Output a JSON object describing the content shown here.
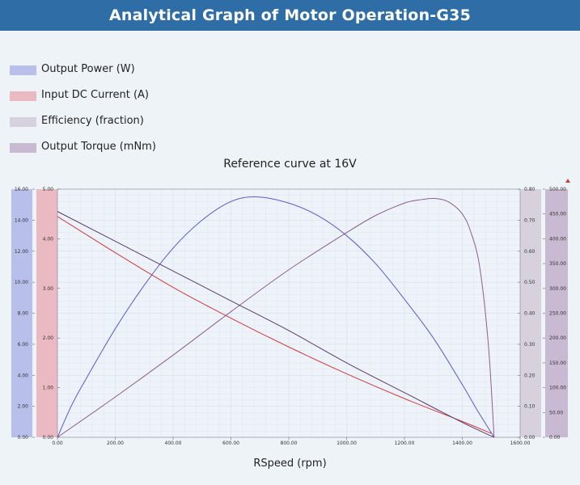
{
  "page_title": "Analytical Graph of Motor Operation-G35",
  "legend": [
    {
      "label": "Output Power (W)",
      "color": "#b8bfea"
    },
    {
      "label": "Input DC Current (A)",
      "color": "#eab9c1"
    },
    {
      "label": "Efficiency (fraction)",
      "color": "#d7d1de"
    },
    {
      "label": "Output Torque (mNm)",
      "color": "#c8bad3"
    }
  ],
  "chart_data": {
    "type": "line",
    "title": "Reference curve at 16V",
    "xlabel": "RSpeed (rpm)",
    "xlim": [
      0,
      1600
    ],
    "x_ticks": [
      "0.00",
      "200.00",
      "400.00",
      "600.00",
      "800.00",
      "1000.00",
      "1200.00",
      "1400.00",
      "1600.00"
    ],
    "grid": true,
    "axes": [
      {
        "id": "power",
        "side": "left-outer",
        "ylim": [
          0,
          16
        ],
        "ticks": [
          "0.00",
          "2.00",
          "4.00",
          "6.00",
          "8.00",
          "10.00",
          "12.00",
          "14.00",
          "16.00"
        ],
        "band_color": "#b8bfea"
      },
      {
        "id": "current",
        "side": "left-inner",
        "ylim": [
          0,
          5
        ],
        "ticks": [
          "0.00",
          "1.00",
          "2.00",
          "3.00",
          "4.00",
          "5.00"
        ],
        "band_color": "#eab9c1"
      },
      {
        "id": "efficiency",
        "side": "right-inner",
        "ylim": [
          0,
          0.8
        ],
        "ticks": [
          "0.00",
          "0.10",
          "0.20",
          "0.30",
          "0.40",
          "0.50",
          "0.60",
          "0.70",
          "0.80"
        ],
        "band_color": "#d7d1de"
      },
      {
        "id": "torque",
        "side": "right-outer",
        "ylim": [
          0,
          500
        ],
        "ticks": [
          "0.00",
          "50.00",
          "100.00",
          "150.00",
          "200.00",
          "250.00",
          "300.00",
          "350.00",
          "400.00",
          "450.00",
          "500.00"
        ],
        "band_color": "#c8bad3"
      }
    ],
    "series": [
      {
        "name": "Output Power (W)",
        "axis": "power",
        "color": "#5b5bc6",
        "x": [
          0,
          50,
          100,
          200,
          300,
          400,
          500,
          600,
          690,
          800,
          900,
          1000,
          1100,
          1200,
          1300,
          1400,
          1450,
          1510
        ],
        "y": [
          0,
          2.1,
          3.8,
          7.0,
          9.8,
          12.2,
          14.0,
          15.2,
          15.5,
          15.1,
          14.3,
          13.0,
          11.2,
          8.9,
          6.4,
          3.4,
          1.8,
          0
        ]
      },
      {
        "name": "Input DC Current (A)",
        "axis": "current",
        "color": "#d23a3a",
        "x": [
          0,
          200,
          400,
          600,
          800,
          1000,
          1200,
          1400,
          1500
        ],
        "y": [
          4.45,
          3.72,
          3.02,
          2.4,
          1.82,
          1.28,
          0.78,
          0.32,
          0.08
        ]
      },
      {
        "name": "Efficiency (fraction)",
        "axis": "efficiency",
        "color": "#8e5c8e",
        "x": [
          0,
          200,
          400,
          600,
          800,
          1000,
          1100,
          1200,
          1250,
          1300,
          1350,
          1400,
          1430,
          1460,
          1490,
          1510
        ],
        "y": [
          0,
          0.13,
          0.265,
          0.405,
          0.54,
          0.66,
          0.715,
          0.755,
          0.765,
          0.77,
          0.76,
          0.72,
          0.66,
          0.55,
          0.3,
          0
        ]
      },
      {
        "name": "Output Torque (mNm)",
        "axis": "torque",
        "color": "#5a3c6a",
        "x": [
          0,
          200,
          400,
          600,
          800,
          1000,
          1200,
          1400,
          1510
        ],
        "y": [
          455,
          395,
          335,
          275,
          215,
          150,
          90,
          30,
          0
        ]
      }
    ]
  }
}
